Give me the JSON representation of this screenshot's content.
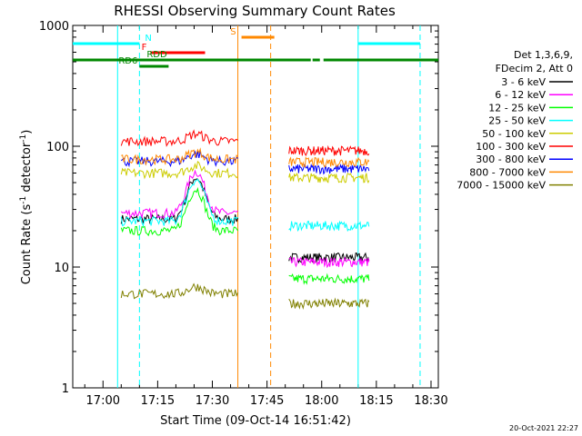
{
  "chart_data": {
    "type": "line",
    "title": "RHESSI Observing Summary Count Rates",
    "xlabel": "Start Time (09-Oct-14 16:51:42)",
    "ylabel": "Count Rate (s^-1 detector^-1)",
    "ylabel_main": "Count Rate (s",
    "ylabel_sup1": "-1",
    "ylabel_mid": " detector",
    "ylabel_sup2": "-1",
    "ylabel_end": ")",
    "yscale": "log",
    "ylim": [
      1,
      1000
    ],
    "xlim": [
      "16:51:42",
      "18:32:00"
    ],
    "x_ticks": [
      "17:00",
      "17:15",
      "17:30",
      "17:45",
      "18:00",
      "18:15",
      "18:30"
    ],
    "y_tick_labels": [
      "1",
      "10",
      "100",
      "1000"
    ],
    "footer_date": "20-Oct-2021 22:27",
    "legend_header": [
      "Det 1,3,6,9,",
      "FDecim 2, Att 0"
    ],
    "series": [
      {
        "name": "3 - 6 keV",
        "color": "#000000",
        "min_level": 2.0,
        "cycle1": 25,
        "cycle2": 12
      },
      {
        "name": "6 - 12 keV",
        "color": "#ff00ff",
        "min_level": 3.5,
        "cycle1": 28,
        "cycle2": 11
      },
      {
        "name": "12 - 25 keV",
        "color": "#00ff00",
        "min_level": 2.0,
        "cycle1": 20,
        "cycle2": 8
      },
      {
        "name": "25 - 50 keV",
        "color": "#00ffff",
        "min_level": 6.5,
        "cycle1": 24,
        "cycle2": 22
      },
      {
        "name": "50 - 100 keV",
        "color": "#cccc00",
        "min_level": 7.0,
        "cycle1": 60,
        "cycle2": 55
      },
      {
        "name": "100 - 300 keV",
        "color": "#ff0000",
        "min_level": 10.0,
        "cycle1": 110,
        "cycle2": 92
      },
      {
        "name": "300 - 800 keV",
        "color": "#0000ff",
        "min_level": 8.0,
        "cycle1": 75,
        "cycle2": 65
      },
      {
        "name": "800 - 7000 keV",
        "color": "#ff8800",
        "min_level": 8.0,
        "cycle1": 78,
        "cycle2": 74
      },
      {
        "name": "7000 - 15000 keV",
        "color": "#808000",
        "min_level": 2.0,
        "cycle1": 6,
        "cycle2": 5
      }
    ],
    "state_bars": [
      {
        "label": "N",
        "color": "#00ffff",
        "segments": [
          [
            "16:51:42",
            "17:10:00"
          ],
          [
            "18:10:00",
            "18:27:00"
          ]
        ]
      },
      {
        "label": "F",
        "color": "#ff0000",
        "segments": [
          [
            "17:13:00",
            "17:28:00"
          ]
        ]
      },
      {
        "label": "RDD",
        "color": "#008800",
        "segments": [
          [
            "16:51:42",
            "17:57:00"
          ],
          [
            "17:57:30",
            "17:59:30"
          ],
          [
            "18:00:30",
            "18:32:00"
          ]
        ]
      },
      {
        "label": "RD6",
        "color": "#008800",
        "segments": [
          [
            "17:10:00",
            "17:18:00"
          ]
        ]
      },
      {
        "label": "S",
        "color": "#ff8800",
        "segments": [
          [
            "17:38:00",
            "17:47:00"
          ]
        ]
      }
    ],
    "night_lines": [
      {
        "color": "#00ffff",
        "style": "solid",
        "time": "17:04:00"
      },
      {
        "color": "#00ffff",
        "style": "dashed",
        "time": "17:10:00"
      },
      {
        "color": "#00ffff",
        "style": "solid",
        "time": "18:10:00"
      },
      {
        "color": "#00ffff",
        "style": "dashed",
        "time": "18:27:00"
      },
      {
        "color": "#ff8800",
        "style": "solid",
        "time": "17:37:00"
      },
      {
        "color": "#ff8800",
        "style": "dashed",
        "time": "17:46:00"
      }
    ]
  }
}
